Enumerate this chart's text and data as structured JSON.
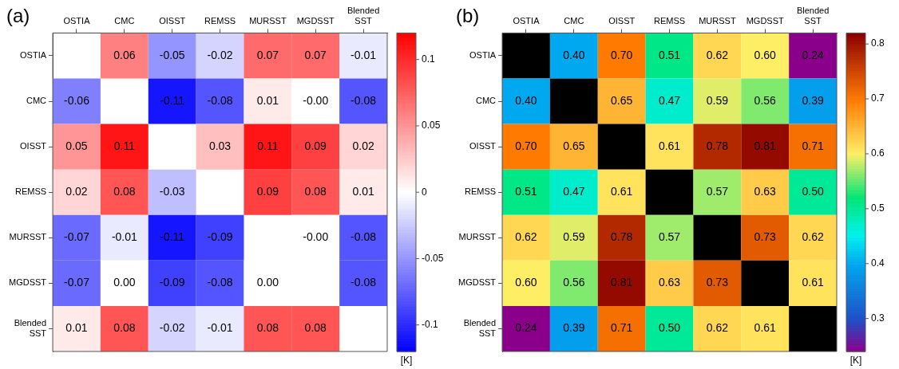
{
  "chart_data": [
    {
      "type": "heatmap",
      "title": "(a)",
      "clabel": "[K]",
      "categories": [
        "OSTIA",
        "CMC",
        "OISST",
        "REMSS",
        "MURSST",
        "MGDSST",
        "Blended SST"
      ],
      "y_categories": [
        "OSTIA",
        "CMC",
        "OISST",
        "REMSS",
        "MURSST",
        "MGDSST",
        "Blended SST"
      ],
      "cells": [
        [
          null,
          0.06,
          -0.05,
          -0.02,
          0.07,
          0.07,
          -0.01
        ],
        [
          -0.06,
          null,
          -0.11,
          -0.08,
          0.01,
          0,
          -0.08
        ],
        [
          0.05,
          0.11,
          null,
          0.03,
          0.11,
          0.09,
          0.02
        ],
        [
          0.02,
          0.08,
          -0.03,
          null,
          0.09,
          0.08,
          0.01
        ],
        [
          -0.07,
          -0.01,
          -0.11,
          -0.09,
          null,
          0,
          -0.08
        ],
        [
          -0.07,
          0,
          -0.09,
          -0.08,
          0,
          null,
          -0.08
        ],
        [
          0.01,
          0.08,
          -0.02,
          -0.01,
          0.08,
          0.08,
          null
        ]
      ],
      "cell_labels": [
        [
          null,
          "0.06",
          "-0.05",
          "-0.02",
          "0.07",
          "0.07",
          "-0.01"
        ],
        [
          "-0.06",
          null,
          "-0.11",
          "-0.08",
          "0.01",
          "-0.00",
          "-0.08"
        ],
        [
          "0.05",
          "0.11",
          null,
          "0.03",
          "0.11",
          "0.09",
          "0.02"
        ],
        [
          "0.02",
          "0.08",
          "-0.03",
          null,
          "0.09",
          "0.08",
          "0.01"
        ],
        [
          "-0.07",
          "-0.01",
          "-0.11",
          "-0.09",
          null,
          "-0.00",
          "-0.08"
        ],
        [
          "-0.07",
          "0.00",
          "-0.09",
          "-0.08",
          "0.00",
          null,
          "-0.08"
        ],
        [
          "0.01",
          "0.08",
          "-0.02",
          "-0.01",
          "0.08",
          "0.08",
          null
        ]
      ],
      "clim": [
        -0.12,
        0.12
      ],
      "cticks": [
        -0.1,
        -0.05,
        0,
        0.05,
        0.1
      ]
    },
    {
      "type": "heatmap",
      "title": "(b)",
      "clabel": "[K]",
      "categories": [
        "OSTIA",
        "CMC",
        "OISST",
        "REMSS",
        "MURSST",
        "MGDSST",
        "Blended SST"
      ],
      "y_categories": [
        "OSTIA",
        "CMC",
        "OISST",
        "REMSS",
        "MURSST",
        "MGDSST",
        "Blended SST"
      ],
      "cells": [
        [
          null,
          0.4,
          0.7,
          0.51,
          0.62,
          0.6,
          0.24
        ],
        [
          0.4,
          null,
          0.65,
          0.47,
          0.59,
          0.56,
          0.39
        ],
        [
          0.7,
          0.65,
          null,
          0.61,
          0.78,
          0.81,
          0.71
        ],
        [
          0.51,
          0.47,
          0.61,
          null,
          0.57,
          0.63,
          0.5
        ],
        [
          0.62,
          0.59,
          0.78,
          0.57,
          null,
          0.73,
          0.62
        ],
        [
          0.6,
          0.56,
          0.81,
          0.63,
          0.73,
          null,
          0.61
        ],
        [
          0.24,
          0.39,
          0.71,
          0.5,
          0.62,
          0.61,
          null
        ]
      ],
      "cell_labels": [
        [
          null,
          "0.40",
          "0.70",
          "0.51",
          "0.62",
          "0.60",
          "0.24"
        ],
        [
          "0.40",
          null,
          "0.65",
          "0.47",
          "0.59",
          "0.56",
          "0.39"
        ],
        [
          "0.70",
          "0.65",
          null,
          "0.61",
          "0.78",
          "0.81",
          "0.71"
        ],
        [
          "0.51",
          "0.47",
          "0.61",
          null,
          "0.57",
          "0.63",
          "0.50"
        ],
        [
          "0.62",
          "0.59",
          "0.78",
          "0.57",
          null,
          "0.73",
          "0.62"
        ],
        [
          "0.60",
          "0.56",
          "0.81",
          "0.63",
          "0.73",
          null,
          "0.61"
        ],
        [
          "0.24",
          "0.39",
          "0.71",
          "0.50",
          "0.62",
          "0.61",
          null
        ]
      ],
      "clim": [
        0.24,
        0.82
      ],
      "cticks": [
        0.3,
        0.4,
        0.5,
        0.6,
        0.7,
        0.8
      ]
    }
  ]
}
